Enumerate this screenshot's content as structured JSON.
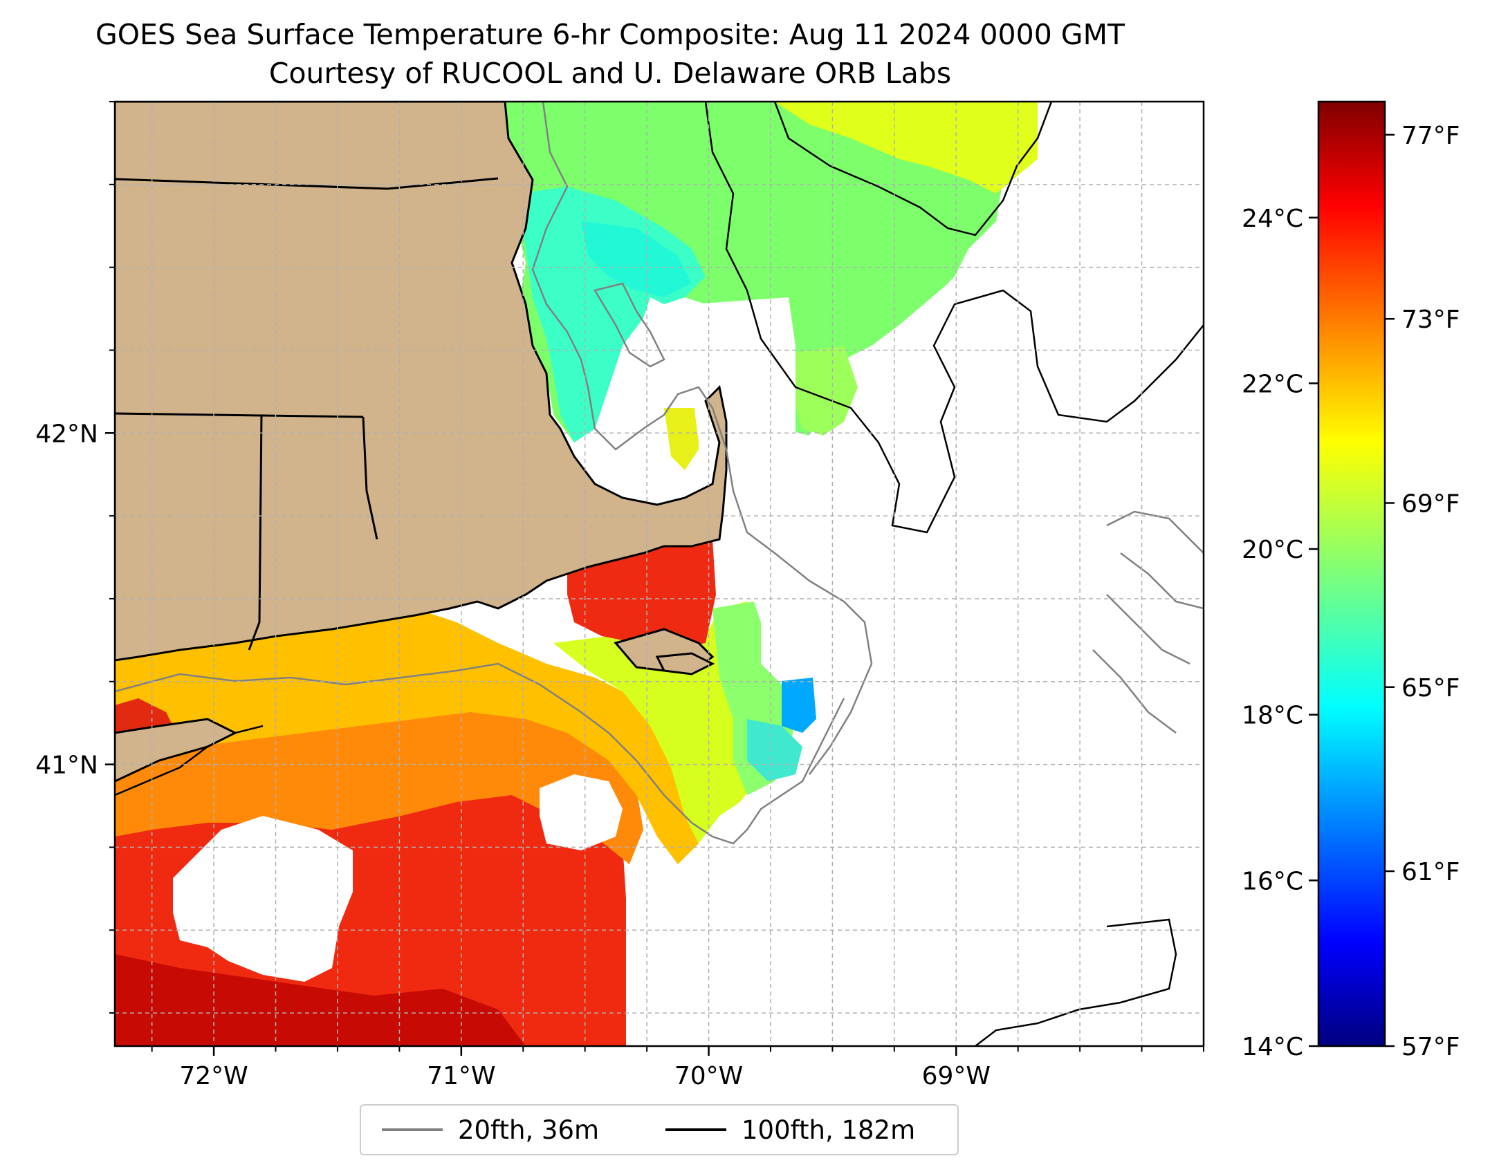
{
  "title": {
    "line1": "GOES Sea Surface Temperature 6-hr Composite: Aug 11 2024 0000 GMT",
    "line2": "Courtesy of RUCOOL and U. Delaware ORB Labs"
  },
  "map": {
    "lon_range": [
      -72.4,
      -68.0
    ],
    "lat_range": [
      40.15,
      43.0
    ],
    "lon_ticks": [
      {
        "value": -72,
        "label": "72°W"
      },
      {
        "value": -71,
        "label": "71°W"
      },
      {
        "value": -70,
        "label": "70°W"
      },
      {
        "value": -69,
        "label": "69°W"
      }
    ],
    "lat_ticks": [
      {
        "value": 42,
        "label": "42°N"
      },
      {
        "value": 41,
        "label": "41°N"
      }
    ],
    "land_color": "#d2b48c",
    "gridlines": true
  },
  "colorbar": {
    "colormap": "jet",
    "range_c": [
      14,
      25.4
    ],
    "celsius_ticks": [
      {
        "value": 14,
        "label": "14°C"
      },
      {
        "value": 16,
        "label": "16°C"
      },
      {
        "value": 18,
        "label": "18°C"
      },
      {
        "value": 20,
        "label": "20°C"
      },
      {
        "value": 22,
        "label": "22°C"
      },
      {
        "value": 24,
        "label": "24°C"
      }
    ],
    "fahrenheit_ticks": [
      {
        "value": 57,
        "label": "57°F"
      },
      {
        "value": 61,
        "label": "61°F"
      },
      {
        "value": 65,
        "label": "65°F"
      },
      {
        "value": 69,
        "label": "69°F"
      },
      {
        "value": 73,
        "label": "73°F"
      },
      {
        "value": 77,
        "label": "77°F"
      }
    ]
  },
  "legend": {
    "placement": "bottom-center",
    "entries": [
      {
        "label": "20fth, 36m",
        "color": "#808080"
      },
      {
        "label": "100fth, 182m",
        "color": "#000000"
      }
    ]
  }
}
